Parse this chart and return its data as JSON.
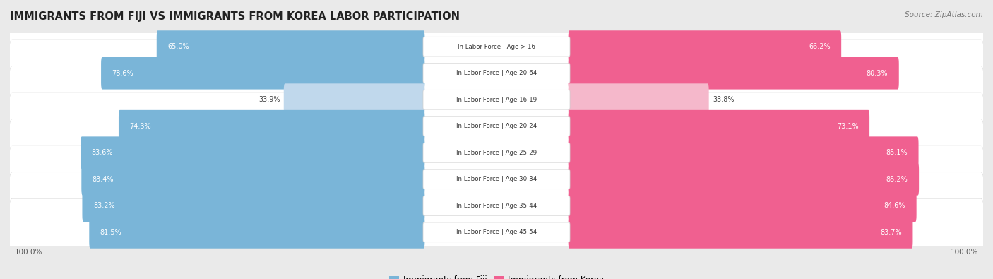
{
  "title": "IMMIGRANTS FROM FIJI VS IMMIGRANTS FROM KOREA LABOR PARTICIPATION",
  "source": "Source: ZipAtlas.com",
  "categories": [
    "In Labor Force | Age > 16",
    "In Labor Force | Age 20-64",
    "In Labor Force | Age 16-19",
    "In Labor Force | Age 20-24",
    "In Labor Force | Age 25-29",
    "In Labor Force | Age 30-34",
    "In Labor Force | Age 35-44",
    "In Labor Force | Age 45-54"
  ],
  "fiji_values": [
    65.0,
    78.6,
    33.9,
    74.3,
    83.6,
    83.4,
    83.2,
    81.5
  ],
  "korea_values": [
    66.2,
    80.3,
    33.8,
    73.1,
    85.1,
    85.2,
    84.6,
    83.7
  ],
  "fiji_color": "#7ab5d8",
  "fiji_color_light": "#c0d8ec",
  "korea_color": "#f06090",
  "korea_color_light": "#f5b8cb",
  "bg_color": "#eaeaea",
  "row_bg_odd": "#f5f5f5",
  "row_bg_even": "#ebebeb",
  "max_value": 100.0,
  "legend_fiji": "Immigrants from Fiji",
  "legend_korea": "Immigrants from Korea"
}
